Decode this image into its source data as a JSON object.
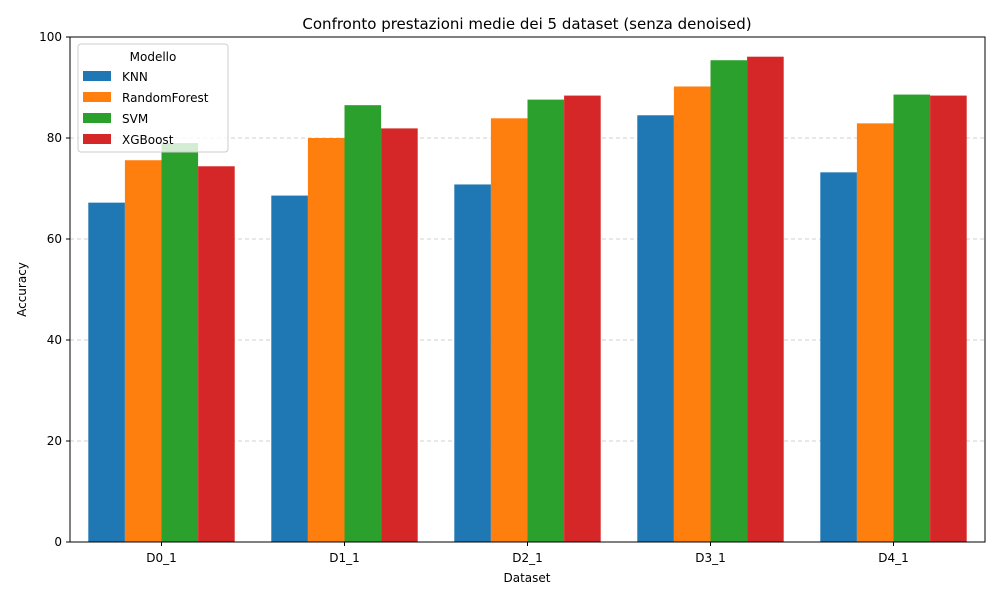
{
  "chart_data": {
    "type": "bar",
    "title": "Confronto prestazioni medie dei 5 dataset (senza denoised)",
    "xlabel": "Dataset",
    "ylabel": "Accuracy",
    "ylim": [
      0,
      100
    ],
    "yticks": [
      0,
      20,
      40,
      60,
      80,
      100
    ],
    "grid": "y-dashed",
    "legend": {
      "title": "Modello",
      "placement": "top-left"
    },
    "categories": [
      "D0_1",
      "D1_1",
      "D2_1",
      "D3_1",
      "D4_1"
    ],
    "series": [
      {
        "name": "KNN",
        "color": "#1f77b4",
        "values": [
          67.2,
          68.6,
          70.8,
          84.5,
          73.2
        ]
      },
      {
        "name": "RandomForest",
        "color": "#ff7f0e",
        "values": [
          75.6,
          80.0,
          83.9,
          90.2,
          82.9
        ]
      },
      {
        "name": "SVM",
        "color": "#2ca02c",
        "values": [
          79.0,
          86.5,
          87.6,
          95.4,
          88.6
        ]
      },
      {
        "name": "XGBoost",
        "color": "#d62728",
        "values": [
          74.4,
          81.9,
          88.4,
          96.1,
          88.4
        ]
      }
    ]
  }
}
